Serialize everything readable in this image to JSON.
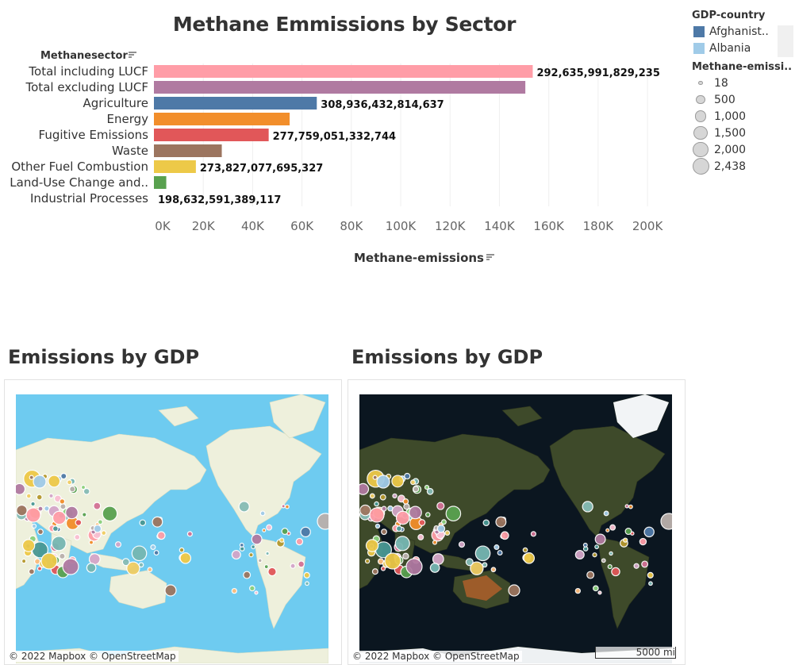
{
  "chart_data": {
    "type": "bar",
    "orientation": "horizontal",
    "title": "Methane Emmissions by Sector",
    "category_header": "Methanesector",
    "xlabel": "Methane-emissions",
    "xlim": [
      0,
      210000
    ],
    "x_ticks": [
      "0K",
      "20K",
      "40K",
      "60K",
      "80K",
      "100K",
      "120K",
      "140K",
      "160K",
      "180K",
      "200K"
    ],
    "x_tick_values": [
      0,
      20000,
      40000,
      60000,
      80000,
      100000,
      120000,
      140000,
      160000,
      180000,
      200000
    ],
    "grid": "vertical",
    "categories": [
      "Total including LUCF",
      "Total excluding LUCF",
      "Agriculture",
      "Energy",
      "Fugitive Emissions",
      "Waste",
      "Other Fuel Combustion",
      "Land-Use Change and..",
      "Industrial Processes"
    ],
    "values": [
      153500,
      150500,
      66000,
      55000,
      46500,
      27500,
      17000,
      5000,
      0
    ],
    "data_labels": [
      "292,635,991,829,235",
      "",
      "308,936,432,814,637",
      "",
      "277,759,051,332,744",
      "",
      "273,827,077,695,327",
      "",
      "198,632,591,389,117"
    ],
    "colors": [
      "#ff9da7",
      "#b07aa1",
      "#4e79a7",
      "#f28e2b",
      "#e15759",
      "#9c755f",
      "#edc948",
      "#59a14f",
      "#bab0ac"
    ]
  },
  "legend": {
    "color_title": "GDP-country",
    "color_items": [
      {
        "label": "Afghanist..",
        "color": "#4e79a7"
      },
      {
        "label": "Albania",
        "color": "#a0cbe8"
      }
    ],
    "size_title": "Methane-emissi..",
    "size_items": [
      {
        "label": "18",
        "value": 18
      },
      {
        "label": "500",
        "value": 500
      },
      {
        "label": "1,000",
        "value": 1000
      },
      {
        "label": "1,500",
        "value": 1500
      },
      {
        "label": "2,000",
        "value": 2000
      },
      {
        "label": "2,438",
        "value": 2438
      }
    ]
  },
  "maps": {
    "left": {
      "title": "Emissions by GDP",
      "attribution": "© 2022 Mapbox © OpenStreetMap"
    },
    "right": {
      "title": "Emissions by GDP",
      "attribution": "© 2022 Mapbox © OpenStreetMap",
      "scale": "5000 mi"
    }
  }
}
